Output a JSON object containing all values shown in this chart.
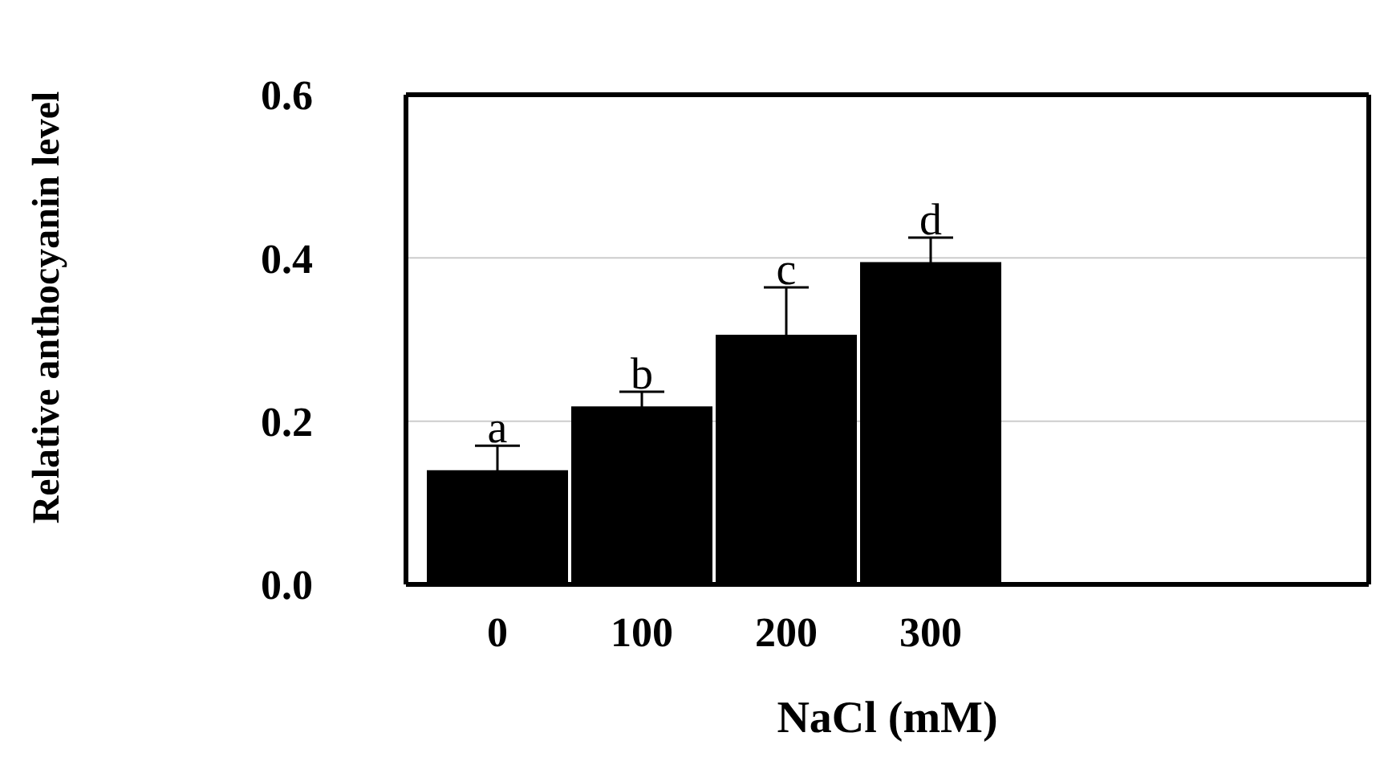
{
  "chart_data": {
    "type": "bar",
    "xlabel": "NaCl (mM)",
    "ylabel": "Relative anthocyanin level",
    "categories": [
      "0",
      "100",
      "200",
      "300"
    ],
    "values": [
      0.14,
      0.218,
      0.306,
      0.395
    ],
    "errors": [
      0.03,
      0.018,
      0.058,
      0.03
    ],
    "color": "#000000",
    "ylim": [
      0,
      0.6
    ],
    "yticks": [
      {
        "value": 0,
        "label": "0.0"
      },
      {
        "value": 0.2,
        "label": "0.2"
      },
      {
        "value": 0.4,
        "label": "0.4"
      },
      {
        "value": 0.6,
        "label": "0.6"
      }
    ],
    "grid": "y",
    "annotations": [
      {
        "text": "a",
        "x": "0",
        "y": 0.17
      },
      {
        "text": "b",
        "x": "100",
        "y": 0.236
      },
      {
        "text": "c",
        "x": "200",
        "y": 0.364
      },
      {
        "text": "d",
        "x": "300",
        "y": 0.425
      }
    ]
  }
}
